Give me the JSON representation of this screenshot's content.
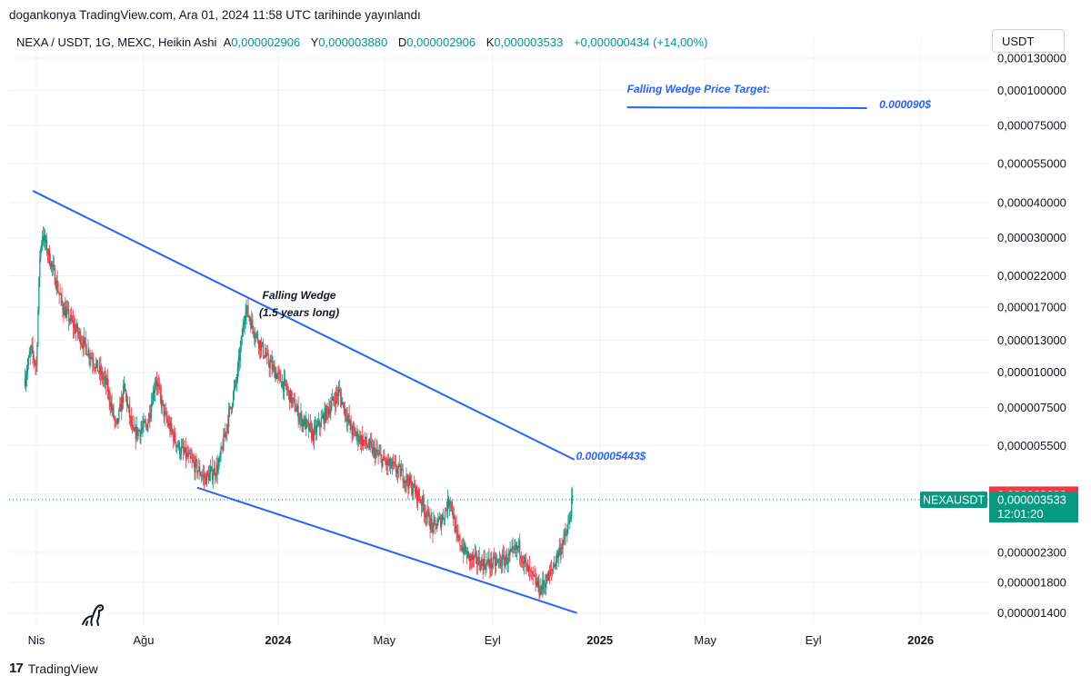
{
  "header": {
    "published": "dogankonya TradingView.com, Ara 01, 2024 11:58 UTC tarihinde yayınlandı",
    "symbol_line": "NEXA / USDT, 1G, MEXC, Heikin Ashi",
    "ohlc": [
      {
        "label": "A",
        "value": "0,000002906"
      },
      {
        "label": "Y",
        "value": "0,000003880"
      },
      {
        "label": "D",
        "value": "0,000002906"
      },
      {
        "label": "K",
        "value": "0,000003533"
      }
    ],
    "change": "+0,000000434 (+14,00%)",
    "currency": "USDT"
  },
  "footer": {
    "brand": "TradingView"
  },
  "colors": {
    "up": "#089981",
    "down": "#f23645",
    "line": "#2962ff",
    "annotation": "#2962ff",
    "grid": "#f0f3fa"
  },
  "chart_data": {
    "type": "candlestick",
    "scale": "log",
    "ylim": [
      1.25e-06,
      0.000132
    ],
    "xlim": [
      "2023-03-01",
      "2026-03-20"
    ],
    "y_ticks": [
      "0,000130000",
      "0,000100000",
      "0,000075000",
      "0,000055000",
      "0,000040000",
      "0,000030000",
      "0,000022000",
      "0,000017000",
      "0,000013000",
      "0,000010000",
      "0,000007500",
      "0,000005500",
      "0,000003700",
      "0,000002300",
      "0,000001800",
      "0,000001400"
    ],
    "y_tick_values": [
      0.00013,
      0.0001,
      7.5e-05,
      5.5e-05,
      4e-05,
      3e-05,
      2.2e-05,
      1.7e-05,
      1.3e-05,
      1e-05,
      7.5e-06,
      5.5e-06,
      3.7e-06,
      2.3e-06,
      1.8e-06,
      1.4e-06
    ],
    "x_ticks": [
      {
        "label": "Nis",
        "date": "2023-04-01",
        "bold": false
      },
      {
        "label": "Ağu",
        "date": "2023-08-01",
        "bold": false
      },
      {
        "label": "2024",
        "date": "2024-01-01",
        "bold": true
      },
      {
        "label": "May",
        "date": "2024-05-01",
        "bold": false
      },
      {
        "label": "Eyl",
        "date": "2024-09-01",
        "bold": false
      },
      {
        "label": "2025",
        "date": "2025-01-01",
        "bold": true
      },
      {
        "label": "May",
        "date": "2025-05-01",
        "bold": false
      },
      {
        "label": "Eyl",
        "date": "2025-09-01",
        "bold": false
      },
      {
        "label": "2026",
        "date": "2026-01-01",
        "bold": true
      }
    ],
    "price_path": [
      [
        "2023-03-19",
        9.5e-06
      ],
      [
        "2023-03-26",
        1.2e-05
      ],
      [
        "2023-04-01",
        1.05e-05
      ],
      [
        "2023-04-05",
        2.6e-05
      ],
      [
        "2023-04-08",
        3.1e-05
      ],
      [
        "2023-04-20",
        2.3e-05
      ],
      [
        "2023-05-01",
        1.7e-05
      ],
      [
        "2023-05-20",
        1.35e-05
      ],
      [
        "2023-06-05",
        1.1e-05
      ],
      [
        "2023-06-20",
        9e-06
      ],
      [
        "2023-07-01",
        6.3e-06
      ],
      [
        "2023-07-10",
        8.8e-06
      ],
      [
        "2023-07-20",
        6e-06
      ],
      [
        "2023-08-05",
        6.5e-06
      ],
      [
        "2023-08-15",
        9.5e-06
      ],
      [
        "2023-08-25",
        7e-06
      ],
      [
        "2023-09-10",
        5.4e-06
      ],
      [
        "2023-09-25",
        4.8e-06
      ],
      [
        "2023-10-10",
        4.2e-06
      ],
      [
        "2023-10-25",
        4.6e-06
      ],
      [
        "2023-11-05",
        6.8e-06
      ],
      [
        "2023-11-15",
        9.5e-06
      ],
      [
        "2023-11-25",
        1.7e-05
      ],
      [
        "2023-12-05",
        1.4e-05
      ],
      [
        "2023-12-20",
        1.1e-05
      ],
      [
        "2024-01-10",
        8.8e-06
      ],
      [
        "2024-01-25",
        7e-06
      ],
      [
        "2024-02-10",
        6e-06
      ],
      [
        "2024-02-25",
        7.2e-06
      ],
      [
        "2024-03-10",
        8.5e-06
      ],
      [
        "2024-03-25",
        6.2e-06
      ],
      [
        "2024-04-15",
        5.4e-06
      ],
      [
        "2024-05-01",
        4.8e-06
      ],
      [
        "2024-05-20",
        4.4e-06
      ],
      [
        "2024-06-10",
        3.6e-06
      ],
      [
        "2024-06-25",
        2.8e-06
      ],
      [
        "2024-07-05",
        3e-06
      ],
      [
        "2024-07-15",
        3.6e-06
      ],
      [
        "2024-07-22",
        2.6e-06
      ],
      [
        "2024-08-05",
        2.2e-06
      ],
      [
        "2024-08-20",
        2.1e-06
      ],
      [
        "2024-09-05",
        2.1e-06
      ],
      [
        "2024-09-20",
        2.2e-06
      ],
      [
        "2024-10-01",
        2.4e-06
      ],
      [
        "2024-10-10",
        2e-06
      ],
      [
        "2024-10-25",
        1.7e-06
      ],
      [
        "2024-11-05",
        1.9e-06
      ],
      [
        "2024-11-15",
        2.3e-06
      ],
      [
        "2024-11-25",
        2.7e-06
      ],
      [
        "2024-12-01",
        3.533e-06
      ]
    ],
    "last_price": "0,000003533",
    "high_price": "0,000003682",
    "countdown": "12:01:20",
    "ticker": "NEXAUSDT",
    "last_price_value": 3.533e-06,
    "high_price_value": 3.682e-06,
    "trendlines": [
      {
        "name": "upper",
        "points": [
          [
            "2023-03-28",
            4.4e-05
          ],
          [
            "2024-12-03",
            4.9e-06
          ]
        ]
      },
      {
        "name": "lower",
        "points": [
          [
            "2023-10-01",
            3.9e-06
          ],
          [
            "2024-12-06",
            1.4e-06
          ]
        ]
      },
      {
        "name": "target",
        "points": [
          [
            "2025-02-01",
            8.7e-05
          ],
          [
            "2025-11-01",
            8.65e-05
          ]
        ]
      }
    ],
    "annotations": [
      {
        "text": "Falling Wedge",
        "date": "2024-01-25",
        "price": 1.82e-05
      },
      {
        "text": "(1.5 years long)",
        "date": "2024-01-25",
        "price": 1.58e-05
      },
      {
        "text": "0.000005443$",
        "date": "2024-12-05",
        "price": 4.9e-06
      },
      {
        "text": "Falling Wedge Price Target:",
        "date": "2025-02-01",
        "price": 9.8e-05
      },
      {
        "text": "0.000090$",
        "date": "2025-11-15",
        "price": 8.65e-05
      }
    ]
  }
}
